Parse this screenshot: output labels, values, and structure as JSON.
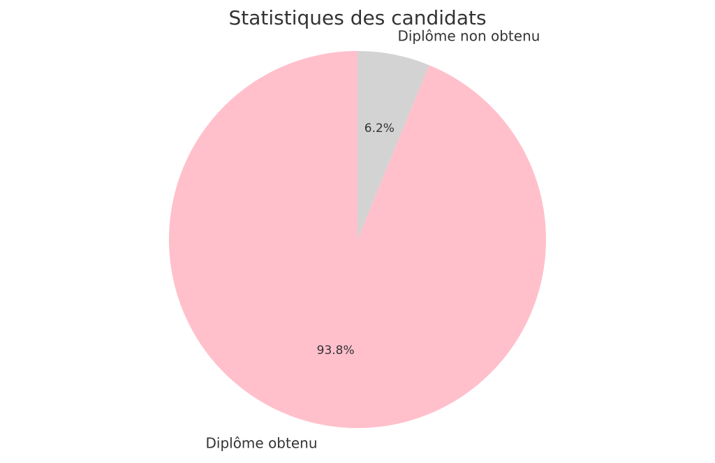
{
  "chart_data": {
    "type": "pie",
    "title": "Statistiques des candidats",
    "slices": [
      {
        "label": "Diplôme non obtenu",
        "value": 6.2,
        "pct_label": "6.2%",
        "color": "#d3d3d3"
      },
      {
        "label": "Diplôme obtenu",
        "value": 93.8,
        "pct_label": "93.8%",
        "color": "#ffc0cb"
      }
    ],
    "start": "top",
    "direction": "clockwise",
    "legend": "none"
  }
}
